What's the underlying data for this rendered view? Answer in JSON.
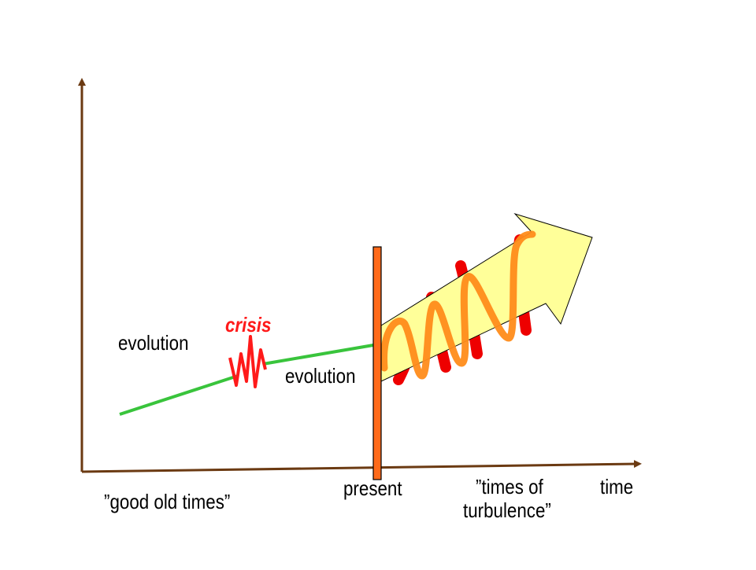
{
  "labels": {
    "evolution_past": "evolution",
    "crisis": "crisis",
    "evolution_recent": "evolution",
    "present": "present",
    "time": "time",
    "good_old_times": "”good old times”",
    "turbulence_line1": "”times of",
    "turbulence_line2": "turbulence”"
  },
  "colors": {
    "axis": "#6b3a12",
    "evolution": "#39c43c",
    "crisis": "#ff1a1a",
    "present_bar": "#ff6a1a",
    "arrow_fill": "#ffff99",
    "spring_front": "#ff8c1a",
    "spring_back": "#ee0000"
  },
  "icons": {
    "y_axis": "axis-arrow-up",
    "x_axis": "axis-arrow-right",
    "future": "block-arrow-up-right",
    "crisis": "zigzag",
    "turbulence": "coil-spring"
  }
}
